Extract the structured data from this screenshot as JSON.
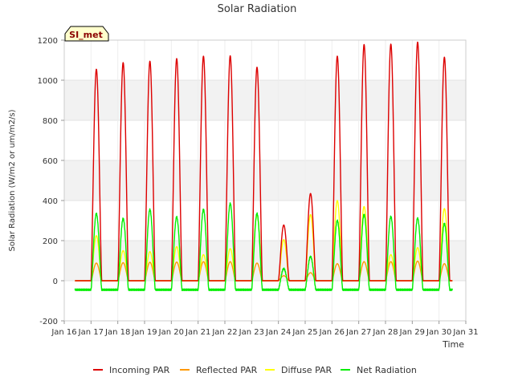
{
  "chart_data": {
    "type": "line",
    "title": "Solar Radiation",
    "xlabel": "Time",
    "ylabel": "Solar Radiation (W/m2 or um/m2/s)",
    "ylim": [
      -200,
      1200
    ],
    "xlim": [
      16,
      31
    ],
    "yticks": [
      -200,
      0,
      200,
      400,
      600,
      800,
      1000,
      1200
    ],
    "xticks": [
      {
        "v": 16,
        "label": "Jan 16"
      },
      {
        "v": 17,
        "label": "Jan 17"
      },
      {
        "v": 18,
        "label": "Jan 18"
      },
      {
        "v": 19,
        "label": "Jan 19"
      },
      {
        "v": 20,
        "label": "Jan 20"
      },
      {
        "v": 21,
        "label": "Jan 21"
      },
      {
        "v": 22,
        "label": "Jan 22"
      },
      {
        "v": 23,
        "label": "Jan 23"
      },
      {
        "v": 24,
        "label": "Jan 24"
      },
      {
        "v": 25,
        "label": "Jan 25"
      },
      {
        "v": 26,
        "label": "Jan 26"
      },
      {
        "v": 27,
        "label": "Jan 27"
      },
      {
        "v": 28,
        "label": "Jan 28"
      },
      {
        "v": 29,
        "label": "Jan 29"
      },
      {
        "v": 30,
        "label": "Jan 30"
      },
      {
        "v": 31,
        "label": "Jan 31"
      }
    ],
    "station_label": "SI_met",
    "data_start": 16.4,
    "data_end": 30.5,
    "daily": [
      {
        "noon": 17.2,
        "incoming": 1055,
        "reflected": 88,
        "diffuse": 225,
        "net": 335
      },
      {
        "noon": 18.2,
        "incoming": 1088,
        "reflected": 90,
        "diffuse": 150,
        "net": 310
      },
      {
        "noon": 19.2,
        "incoming": 1095,
        "reflected": 92,
        "diffuse": 145,
        "net": 355
      },
      {
        "noon": 20.2,
        "incoming": 1108,
        "reflected": 93,
        "diffuse": 170,
        "net": 318
      },
      {
        "noon": 21.2,
        "incoming": 1120,
        "reflected": 95,
        "diffuse": 130,
        "net": 355
      },
      {
        "noon": 22.2,
        "incoming": 1122,
        "reflected": 95,
        "diffuse": 160,
        "net": 385
      },
      {
        "noon": 23.2,
        "incoming": 1065,
        "reflected": 88,
        "diffuse": 330,
        "net": 335
      },
      {
        "noon": 24.2,
        "incoming": 278,
        "reflected": 25,
        "diffuse": 205,
        "net": 60
      },
      {
        "noon": 25.2,
        "incoming": 435,
        "reflected": 40,
        "diffuse": 330,
        "net": 120
      },
      {
        "noon": 26.2,
        "incoming": 1120,
        "reflected": 85,
        "diffuse": 400,
        "net": 300
      },
      {
        "noon": 27.2,
        "incoming": 1178,
        "reflected": 95,
        "diffuse": 370,
        "net": 330
      },
      {
        "noon": 28.2,
        "incoming": 1180,
        "reflected": 95,
        "diffuse": 130,
        "net": 320
      },
      {
        "noon": 29.2,
        "incoming": 1190,
        "reflected": 98,
        "diffuse": 165,
        "net": 312
      },
      {
        "noon": 30.2,
        "incoming": 1115,
        "reflected": 85,
        "diffuse": 360,
        "net": 285
      }
    ],
    "night_net": -45,
    "series": [
      {
        "name": "Incoming PAR",
        "key": "incoming",
        "color": "#dd0000"
      },
      {
        "name": "Reflected PAR",
        "key": "reflected",
        "color": "#ff9900"
      },
      {
        "name": "Diffuse PAR",
        "key": "diffuse",
        "color": "#ffff00"
      },
      {
        "name": "Net Radiation",
        "key": "net",
        "color": "#00ee00"
      }
    ]
  }
}
